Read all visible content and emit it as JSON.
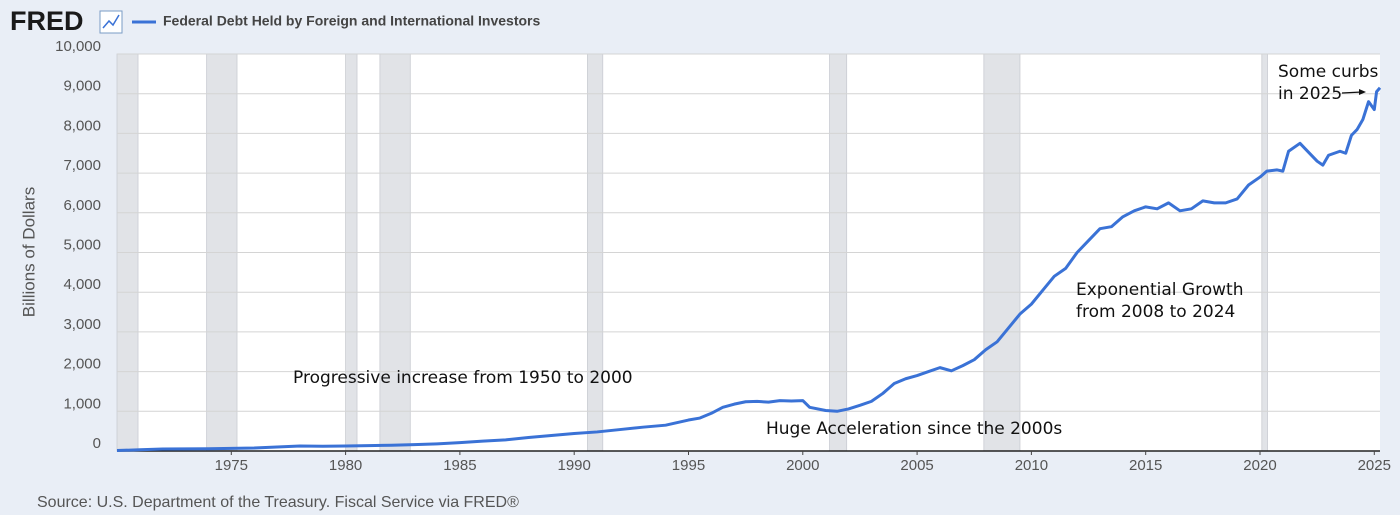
{
  "chart_data": {
    "type": "line",
    "logo": "FRED",
    "source": "Source: U.S. Department of the Treasury. Fiscal Service via FRED®",
    "y_label": "Billions of Dollars",
    "grid": true,
    "xlim": [
      1970,
      2025.25
    ],
    "xticks": [
      1975,
      1980,
      1985,
      1990,
      1995,
      2000,
      2005,
      2010,
      2015,
      2020,
      2025
    ],
    "ylim": [
      0,
      10000
    ],
    "yticks": [
      0,
      {
        "value": 1000,
        "label": "1,000"
      },
      {
        "value": 2000,
        "label": "2,000"
      },
      {
        "value": 3000,
        "label": "3,000"
      },
      {
        "value": 4000,
        "label": "4,000"
      },
      {
        "value": 5000,
        "label": "5,000"
      },
      {
        "value": 6000,
        "label": "6,000"
      },
      {
        "value": 7000,
        "label": "7,000"
      },
      {
        "value": 8000,
        "label": "8,000"
      },
      {
        "value": 9000,
        "label": "9,000"
      },
      {
        "value": 10000,
        "label": "10,000"
      }
    ],
    "recessions": [
      [
        1970,
        1970.92
      ],
      [
        1973.92,
        1975.25
      ],
      [
        1980,
        1980.5
      ],
      [
        1981.5,
        1982.83
      ],
      [
        1990.58,
        1991.25
      ],
      [
        2001.17,
        2001.92
      ],
      [
        2007.92,
        2009.5
      ],
      [
        2020.08,
        2020.33
      ]
    ],
    "recession_color": "#e1e3e7",
    "series": [
      {
        "name": "Federal Debt Held by Foreign and International Investors",
        "color": "#3a72d6",
        "x": [
          1970,
          1971,
          1972,
          1973,
          1974,
          1975,
          1976,
          1977,
          1978,
          1979,
          1980,
          1981,
          1982,
          1983,
          1984,
          1985,
          1986,
          1987,
          1988,
          1989,
          1990,
          1991,
          1992,
          1993,
          1994,
          1995,
          1995.5,
          1996,
          1996.5,
          1997,
          1997.5,
          1998,
          1998.5,
          1999,
          1999.5,
          2000,
          2000.3,
          2001,
          2001.5,
          2002,
          2002.5,
          2003,
          2003.5,
          2004,
          2004.5,
          2005,
          2005.5,
          2006,
          2006.5,
          2007,
          2007.5,
          2008,
          2008.5,
          2009,
          2009.5,
          2010,
          2010.5,
          2011,
          2011.5,
          2012,
          2012.5,
          2013,
          2013.5,
          2014,
          2014.5,
          2015,
          2015.5,
          2016,
          2016.5,
          2017,
          2017.5,
          2018,
          2018.5,
          2019,
          2019.5,
          2020,
          2020.3,
          2020.75,
          2021,
          2021.25,
          2021.75,
          2022,
          2022.5,
          2022.75,
          2023,
          2023.5,
          2023.75,
          2024,
          2024.25,
          2024.5,
          2024.75,
          2025,
          2025.1,
          2025.25
        ],
        "values": [
          12,
          30,
          50,
          55,
          58,
          65,
          75,
          100,
          125,
          120,
          125,
          135,
          145,
          160,
          180,
          210,
          250,
          280,
          340,
          390,
          440,
          480,
          540,
          600,
          650,
          780,
          830,
          950,
          1100,
          1180,
          1240,
          1250,
          1230,
          1270,
          1260,
          1270,
          1100,
          1020,
          1000,
          1060,
          1150,
          1250,
          1450,
          1700,
          1820,
          1900,
          2000,
          2100,
          2020,
          2150,
          2300,
          2550,
          2750,
          3100,
          3450,
          3700,
          4050,
          4400,
          4600,
          5000,
          5300,
          5600,
          5650,
          5900,
          6050,
          6150,
          6100,
          6250,
          6050,
          6100,
          6300,
          6250,
          6250,
          6350,
          6700,
          6900,
          7050,
          7080,
          7050,
          7550,
          7750,
          7600,
          7300,
          7200,
          7450,
          7550,
          7500,
          7950,
          8100,
          8350,
          8800,
          8600,
          9050,
          9150
        ]
      }
    ],
    "annotations": [
      {
        "lines": [
          "Progressive increase from 1950 to 2000"
        ]
      },
      {
        "lines": [
          "Huge Acceleration since the 2000s"
        ]
      },
      {
        "lines": [
          "Exponential Growth",
          "from 2008 to 2024"
        ]
      },
      {
        "lines": [
          "Some curbs",
          "in 2025"
        ]
      }
    ]
  }
}
